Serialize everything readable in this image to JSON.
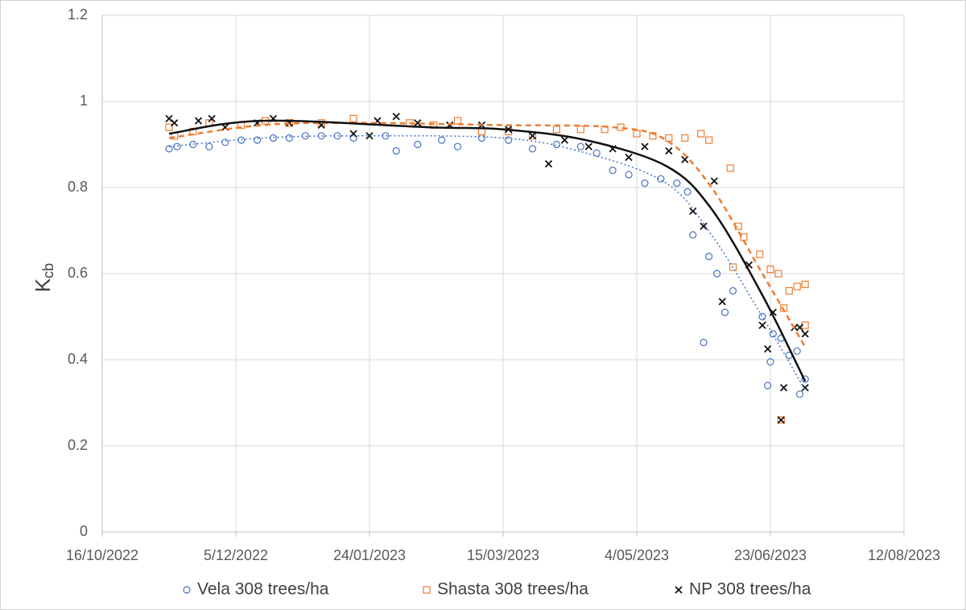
{
  "chart_data": {
    "type": "scatter",
    "y_label": {
      "main": "K",
      "sub": "cb"
    },
    "xlim": [
      "2022-10-16",
      "2023-08-12"
    ],
    "xticks": [
      {
        "value": "2022-10-16",
        "label": "16/10/2022"
      },
      {
        "value": "2022-12-05",
        "label": "5/12/2022"
      },
      {
        "value": "2023-01-24",
        "label": "24/01/2023"
      },
      {
        "value": "2023-03-15",
        "label": "15/03/2023"
      },
      {
        "value": "2023-05-04",
        "label": "4/05/2023"
      },
      {
        "value": "2023-06-23",
        "label": "23/06/2023"
      },
      {
        "value": "2023-08-12",
        "label": "12/08/2023"
      }
    ],
    "ylim": [
      0,
      1.2
    ],
    "yticks": [
      0,
      0.2,
      0.4,
      0.6,
      0.8,
      1,
      1.2
    ],
    "grid": true,
    "legend": "bottom",
    "series": [
      {
        "name": "Vela 308 trees/ha",
        "color": "#4472c4",
        "marker": "circle",
        "x": [
          "2022-11-10",
          "2022-11-13",
          "2022-11-19",
          "2022-11-25",
          "2022-12-01",
          "2022-12-07",
          "2022-12-13",
          "2022-12-19",
          "2022-12-25",
          "2022-12-31",
          "2023-01-06",
          "2023-01-12",
          "2023-01-18",
          "2023-01-30",
          "2023-02-03",
          "2023-02-11",
          "2023-02-20",
          "2023-02-26",
          "2023-03-07",
          "2023-03-17",
          "2023-03-26",
          "2023-04-04",
          "2023-04-13",
          "2023-04-19",
          "2023-04-25",
          "2023-05-01",
          "2023-05-07",
          "2023-05-13",
          "2023-05-19",
          "2023-05-23",
          "2023-05-25",
          "2023-05-29",
          "2023-05-31",
          "2023-06-03",
          "2023-06-06",
          "2023-06-09",
          "2023-06-20",
          "2023-06-22",
          "2023-06-23",
          "2023-06-24",
          "2023-06-27",
          "2023-06-30",
          "2023-07-03",
          "2023-07-04",
          "2023-07-06"
        ],
        "values": [
          0.89,
          0.895,
          0.9,
          0.895,
          0.905,
          0.91,
          0.91,
          0.915,
          0.915,
          0.92,
          0.92,
          0.92,
          0.915,
          0.92,
          0.885,
          0.9,
          0.91,
          0.895,
          0.915,
          0.91,
          0.89,
          0.9,
          0.895,
          0.88,
          0.84,
          0.83,
          0.81,
          0.82,
          0.81,
          0.79,
          0.69,
          0.44,
          0.64,
          0.6,
          0.51,
          0.56,
          0.5,
          0.34,
          0.395,
          0.46,
          0.45,
          0.41,
          0.42,
          0.32,
          0.355
        ],
        "trendline": {
          "dash": "2 3",
          "width": 1.5,
          "x": [
            "2022-11-10",
            "2022-12-15",
            "2023-01-20",
            "2023-03-15",
            "2023-04-15",
            "2023-05-15",
            "2023-06-01",
            "2023-06-20",
            "2023-07-06"
          ],
          "values": [
            0.895,
            0.915,
            0.92,
            0.915,
            0.88,
            0.81,
            0.69,
            0.5,
            0.33
          ]
        }
      },
      {
        "name": "Shasta 308 trees/ha",
        "color": "#ed7d31",
        "marker": "square",
        "x": [
          "2022-11-10",
          "2022-11-12",
          "2022-11-19",
          "2022-11-25",
          "2022-12-07",
          "2022-12-16",
          "2022-12-25",
          "2023-01-06",
          "2023-01-18",
          "2023-02-08",
          "2023-02-17",
          "2023-02-26",
          "2023-03-07",
          "2023-03-17",
          "2023-03-26",
          "2023-04-04",
          "2023-04-13",
          "2023-04-22",
          "2023-04-28",
          "2023-05-04",
          "2023-05-10",
          "2023-05-16",
          "2023-05-22",
          "2023-05-28",
          "2023-05-31",
          "2023-06-08",
          "2023-06-09",
          "2023-06-11",
          "2023-06-13",
          "2023-06-19",
          "2023-06-23",
          "2023-06-26",
          "2023-06-27",
          "2023-06-28",
          "2023-06-30",
          "2023-07-03",
          "2023-07-06",
          "2023-07-06"
        ],
        "values": [
          0.94,
          0.92,
          0.93,
          0.95,
          0.945,
          0.955,
          0.95,
          0.95,
          0.96,
          0.95,
          0.945,
          0.955,
          0.93,
          0.93,
          0.92,
          0.935,
          0.935,
          0.935,
          0.94,
          0.925,
          0.92,
          0.915,
          0.915,
          0.925,
          0.91,
          0.845,
          0.615,
          0.71,
          0.685,
          0.645,
          0.61,
          0.6,
          0.26,
          0.52,
          0.56,
          0.57,
          0.575,
          0.48
        ],
        "trendline": {
          "dash": "7 5",
          "width": 2.5,
          "x": [
            "2022-11-10",
            "2022-12-15",
            "2023-01-20",
            "2023-03-15",
            "2023-04-25",
            "2023-05-15",
            "2023-06-01",
            "2023-06-20",
            "2023-07-06"
          ],
          "values": [
            0.915,
            0.945,
            0.95,
            0.945,
            0.94,
            0.91,
            0.8,
            0.6,
            0.43
          ]
        }
      },
      {
        "name": "NP 308 trees/ha",
        "color": "#111111",
        "marker": "x",
        "x": [
          "2022-11-10",
          "2022-11-12",
          "2022-11-21",
          "2022-11-26",
          "2022-12-01",
          "2022-12-13",
          "2022-12-19",
          "2022-12-25",
          "2023-01-06",
          "2023-01-18",
          "2023-01-24",
          "2023-01-27",
          "2023-02-03",
          "2023-02-11",
          "2023-02-23",
          "2023-03-07",
          "2023-03-17",
          "2023-03-26",
          "2023-04-01",
          "2023-04-07",
          "2023-04-16",
          "2023-04-25",
          "2023-05-01",
          "2023-05-07",
          "2023-05-16",
          "2023-05-22",
          "2023-05-25",
          "2023-05-29",
          "2023-06-02",
          "2023-06-05",
          "2023-06-15",
          "2023-06-20",
          "2023-06-22",
          "2023-06-24",
          "2023-06-27",
          "2023-06-28",
          "2023-07-02",
          "2023-07-04",
          "2023-07-06",
          "2023-07-06"
        ],
        "values": [
          0.96,
          0.95,
          0.955,
          0.96,
          0.94,
          0.95,
          0.96,
          0.95,
          0.945,
          0.925,
          0.92,
          0.955,
          0.965,
          0.95,
          0.945,
          0.945,
          0.935,
          0.92,
          0.855,
          0.91,
          0.895,
          0.89,
          0.87,
          0.895,
          0.885,
          0.865,
          0.745,
          0.71,
          0.815,
          0.535,
          0.62,
          0.48,
          0.425,
          0.51,
          0.26,
          0.335,
          0.475,
          0.475,
          0.46,
          0.335
        ],
        "trendline": {
          "dash": "",
          "width": 2.5,
          "x": [
            "2022-11-10",
            "2022-12-15",
            "2023-02-15",
            "2023-03-15",
            "2023-04-15",
            "2023-05-15",
            "2023-06-01",
            "2023-06-20",
            "2023-07-06"
          ],
          "values": [
            0.925,
            0.955,
            0.94,
            0.935,
            0.91,
            0.85,
            0.75,
            0.55,
            0.35
          ]
        }
      }
    ]
  }
}
